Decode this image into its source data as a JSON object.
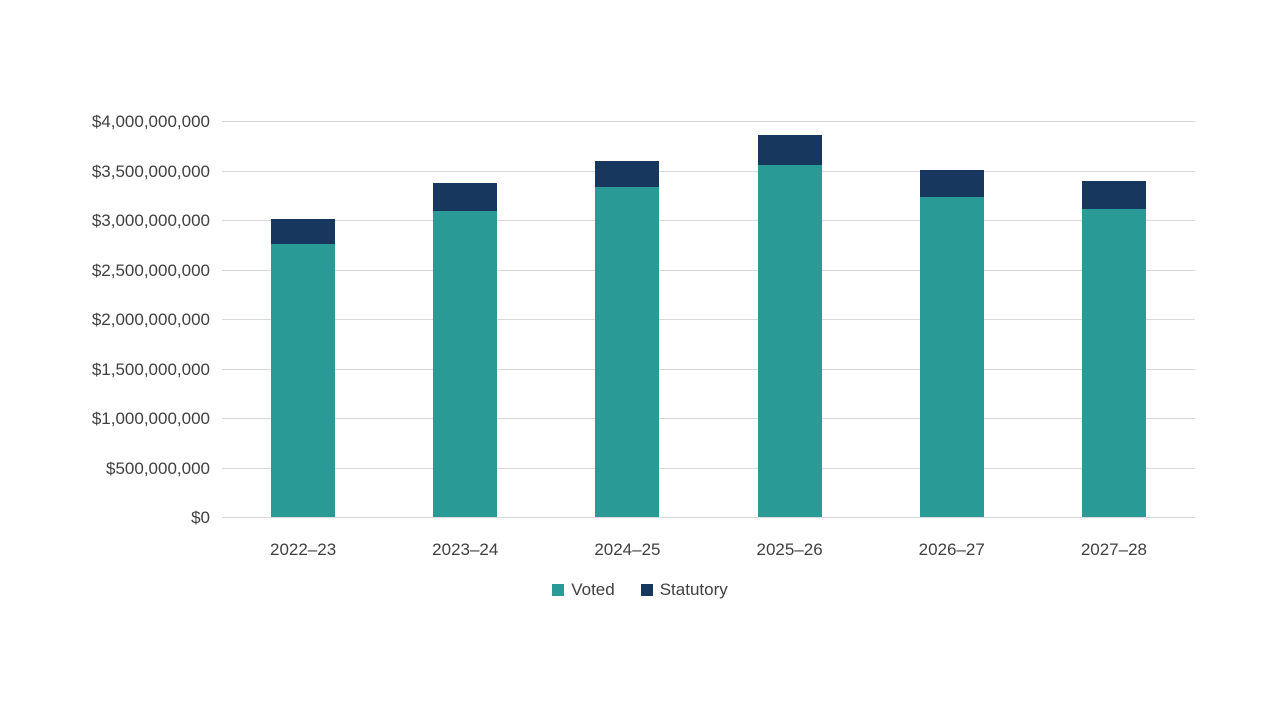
{
  "chart_data": {
    "type": "bar",
    "stacked": true,
    "title": "",
    "xlabel": "",
    "ylabel": "",
    "categories": [
      "2022–23",
      "2023–24",
      "2024–25",
      "2025–26",
      "2026–27",
      "2027–28"
    ],
    "series": [
      {
        "name": "Voted",
        "color": "#2a9a96",
        "values": [
          2760000000,
          3090000000,
          3330000000,
          3560000000,
          3230000000,
          3110000000
        ]
      },
      {
        "name": "Statutory",
        "color": "#17375e",
        "values": [
          250000000,
          280000000,
          270000000,
          300000000,
          280000000,
          280000000
        ]
      }
    ],
    "ylim": [
      0,
      4000000000
    ],
    "ytick_step": 500000000,
    "ytick_labels": [
      "$0",
      "$500,000,000",
      "$1,000,000,000",
      "$1,500,000,000",
      "$2,000,000,000",
      "$2,500,000,000",
      "$3,000,000,000",
      "$3,500,000,000",
      "$4,000,000,000"
    ],
    "grid": true,
    "legend_position": "bottom"
  },
  "style": {
    "gridline_color": "#d9d9d9",
    "axis_text_color": "#404040",
    "background": "#ffffff"
  }
}
